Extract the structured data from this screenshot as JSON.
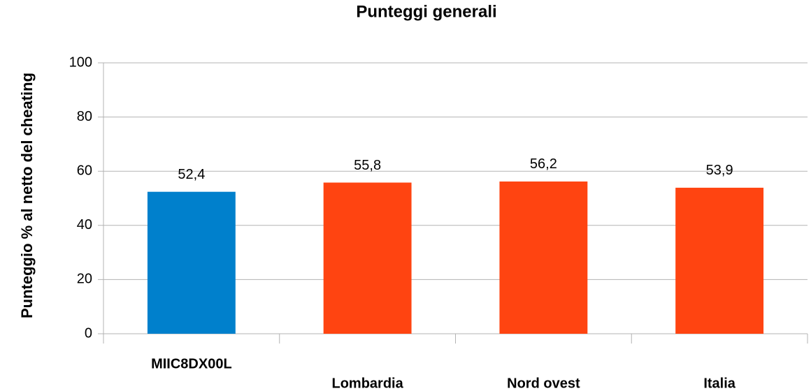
{
  "chart_data": {
    "type": "bar",
    "title": "Punteggi generali",
    "y_label": "Punteggio % al netto del cheating",
    "categories": [
      "MIIC8DX00L",
      "Lombardia",
      "Nord ovest",
      "Italia"
    ],
    "values": [
      52.4,
      55.8,
      56.2,
      53.9
    ],
    "value_labels": [
      "52,4",
      "55,8",
      "56,2",
      "53,9"
    ],
    "colors": [
      "#0080cc",
      "#ff4411",
      "#ff4411",
      "#ff4411"
    ],
    "ylim": [
      0,
      100
    ],
    "yticks": [
      0,
      20,
      40,
      60,
      80,
      100
    ],
    "grid": true
  }
}
